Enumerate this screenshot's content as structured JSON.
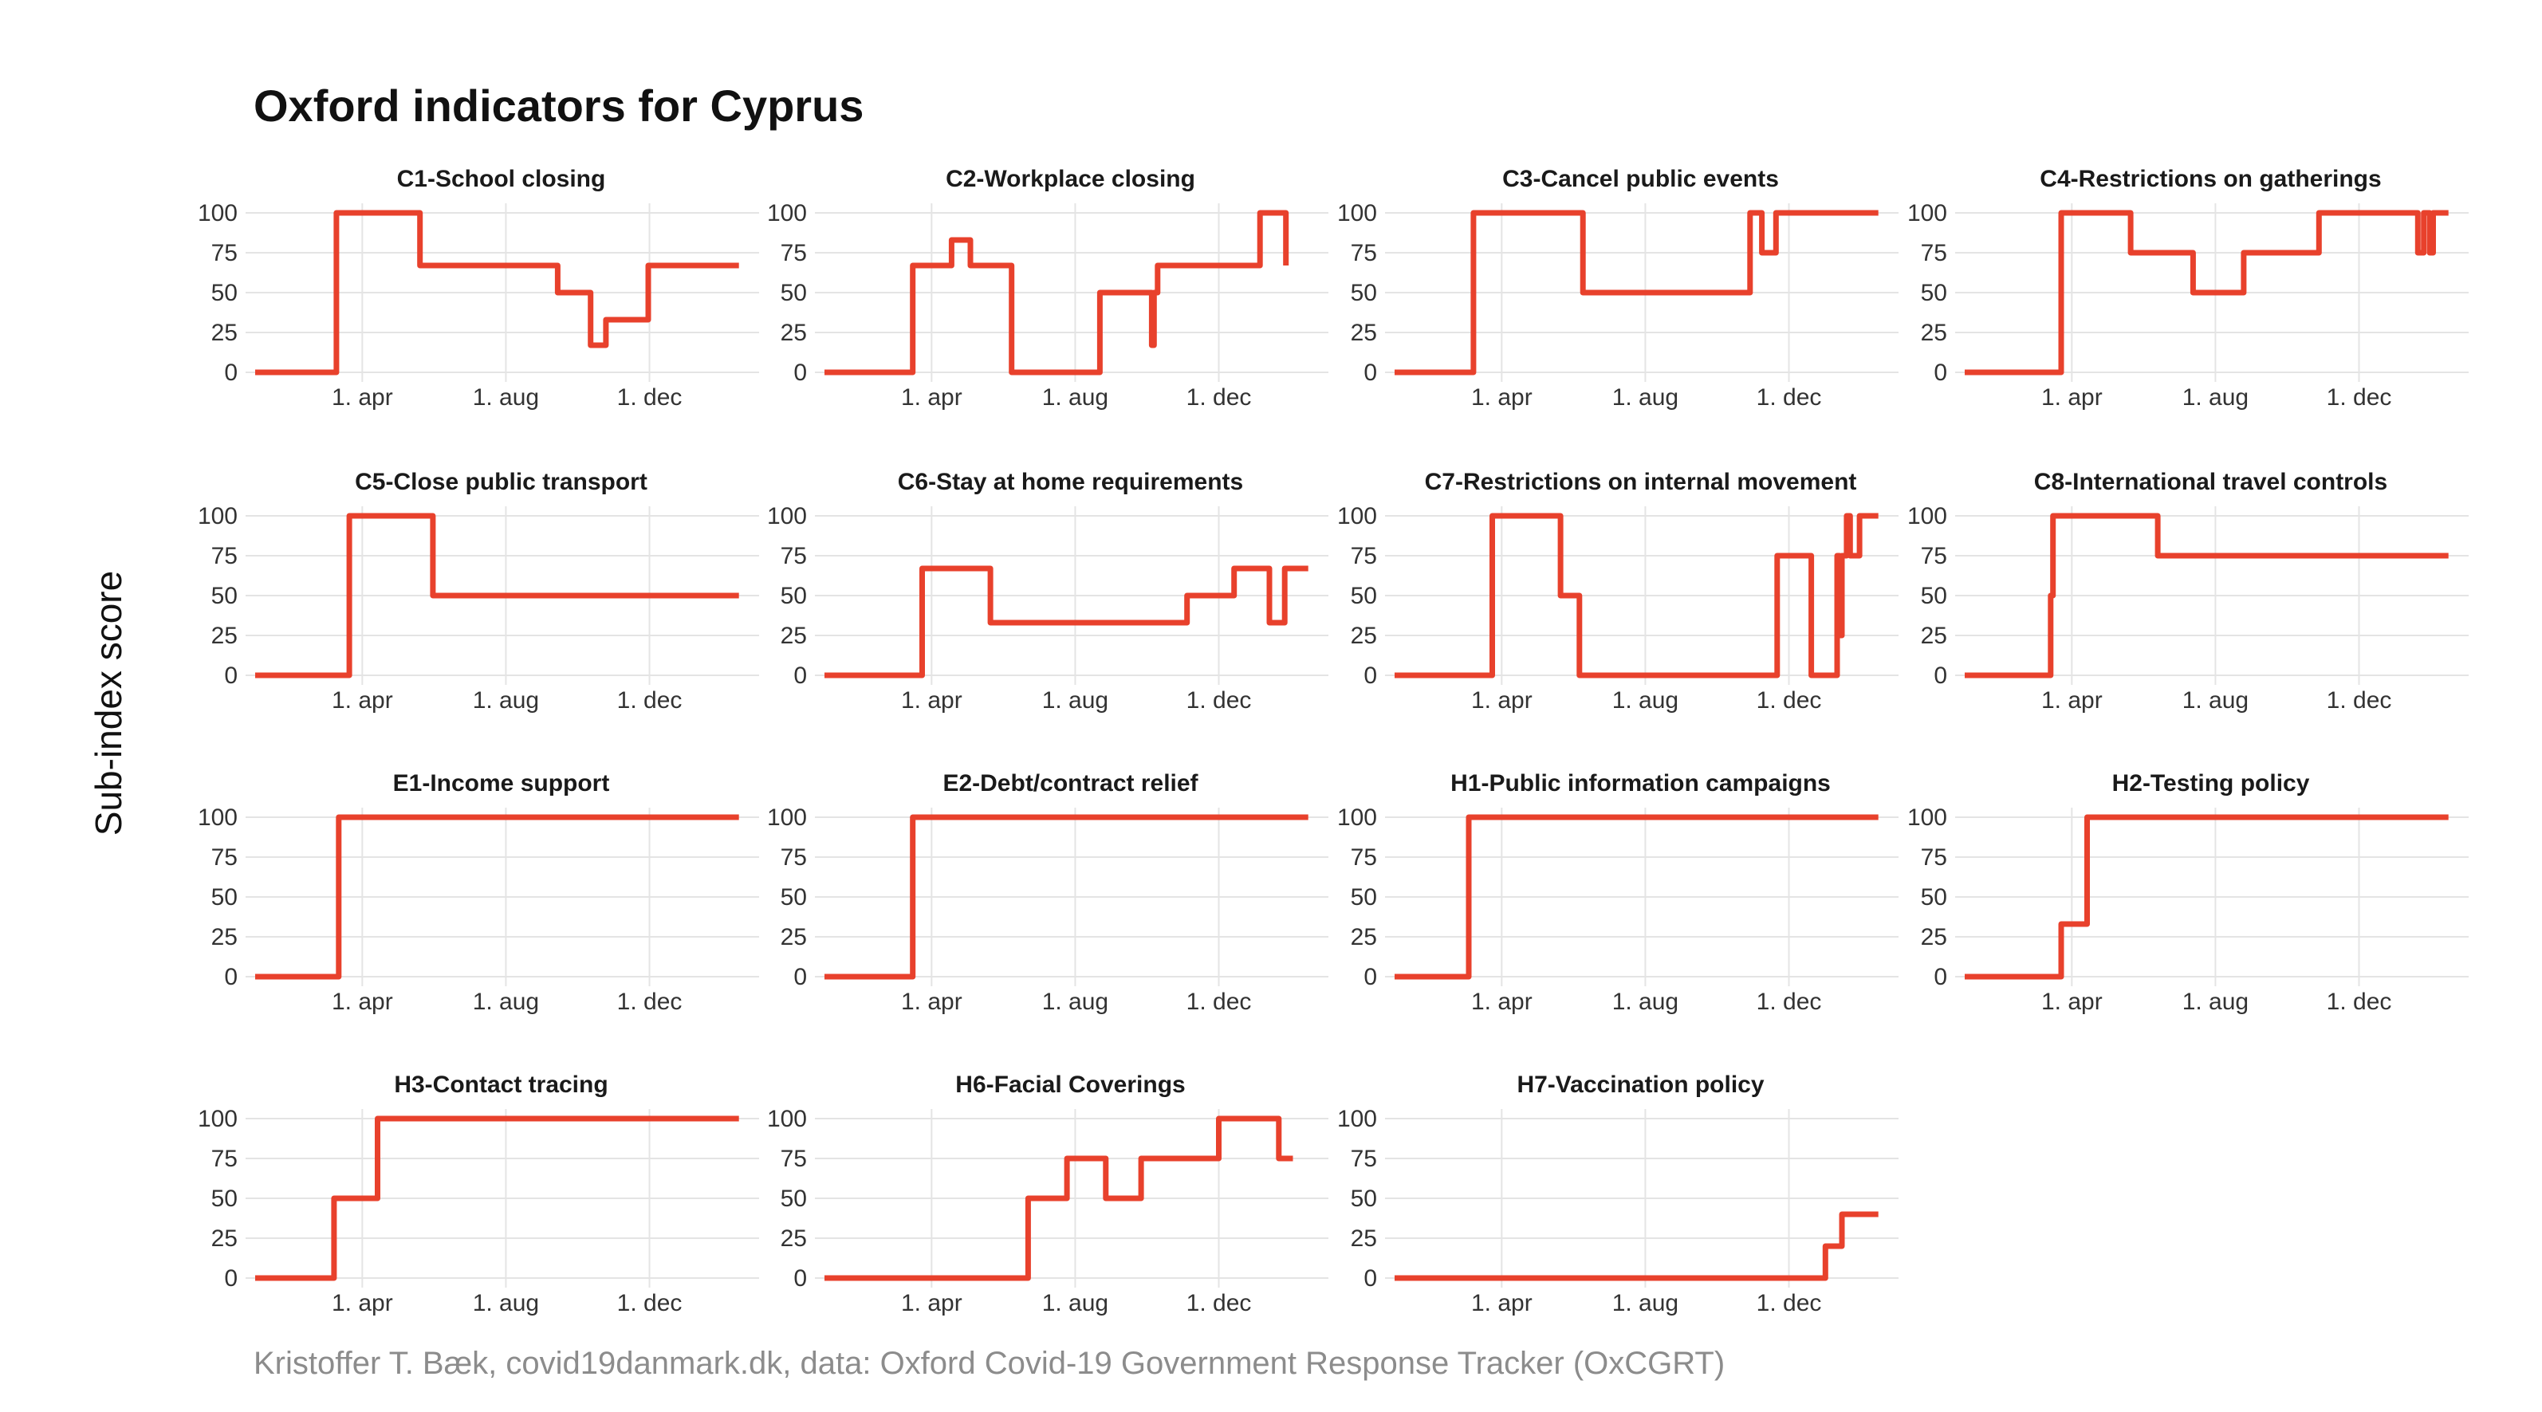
{
  "title": "Oxford indicators for Cyprus",
  "ylabel": "Sub-index score",
  "caption": "Kristoffer T. Bæk, covid19danmark.dk, data: Oxford Covid-19 Government Response Tracker (OxCGRT)",
  "colors": {
    "line": "#e8412c",
    "grid": "#e4e4e4",
    "text": "#333333"
  },
  "chart_data": {
    "type": "line",
    "layout": "small multiples, 4 columns",
    "x_ticks": [
      {
        "label": "1. apr",
        "x": "2020-04-01"
      },
      {
        "label": "1. aug",
        "x": "2020-08-01"
      },
      {
        "label": "1. dec",
        "x": "2020-12-01"
      }
    ],
    "xlim": [
      "2020-01-01",
      "2021-02-24"
    ],
    "ylim": [
      0,
      100
    ],
    "y_ticks": [
      0,
      25,
      50,
      75,
      100
    ],
    "grid": true,
    "panels": [
      {
        "title": "C1-School closing",
        "points": [
          [
            "2020-01-01",
            0
          ],
          [
            "2020-03-10",
            0
          ],
          [
            "2020-03-10",
            100
          ],
          [
            "2020-05-20",
            100
          ],
          [
            "2020-05-20",
            67
          ],
          [
            "2020-09-14",
            67
          ],
          [
            "2020-09-14",
            50
          ],
          [
            "2020-10-12",
            50
          ],
          [
            "2020-10-12",
            17
          ],
          [
            "2020-10-25",
            17
          ],
          [
            "2020-10-25",
            33
          ],
          [
            "2020-11-30",
            33
          ],
          [
            "2020-11-30",
            67
          ],
          [
            "2021-02-15",
            67
          ]
        ]
      },
      {
        "title": "C2-Workplace closing",
        "points": [
          [
            "2020-01-01",
            0
          ],
          [
            "2020-03-16",
            0
          ],
          [
            "2020-03-16",
            67
          ],
          [
            "2020-04-18",
            67
          ],
          [
            "2020-04-18",
            83
          ],
          [
            "2020-05-04",
            83
          ],
          [
            "2020-05-04",
            67
          ],
          [
            "2020-06-08",
            67
          ],
          [
            "2020-06-08",
            0
          ],
          [
            "2020-08-22",
            0
          ],
          [
            "2020-08-22",
            50
          ],
          [
            "2020-10-05",
            50
          ],
          [
            "2020-10-05",
            17
          ],
          [
            "2020-10-07",
            17
          ],
          [
            "2020-10-07",
            50
          ],
          [
            "2020-10-10",
            50
          ],
          [
            "2020-10-10",
            67
          ],
          [
            "2021-01-05",
            67
          ],
          [
            "2021-01-05",
            100
          ],
          [
            "2021-01-27",
            100
          ],
          [
            "2021-01-27",
            67
          ]
        ]
      },
      {
        "title": "C3-Cancel public events",
        "points": [
          [
            "2020-01-01",
            0
          ],
          [
            "2020-03-08",
            0
          ],
          [
            "2020-03-08",
            100
          ],
          [
            "2020-06-09",
            100
          ],
          [
            "2020-06-09",
            50
          ],
          [
            "2020-10-29",
            50
          ],
          [
            "2020-10-29",
            100
          ],
          [
            "2020-11-08",
            100
          ],
          [
            "2020-11-08",
            75
          ],
          [
            "2020-11-20",
            75
          ],
          [
            "2020-11-20",
            100
          ],
          [
            "2021-02-15",
            100
          ]
        ]
      },
      {
        "title": "C4-Restrictions on gatherings",
        "points": [
          [
            "2020-01-01",
            0
          ],
          [
            "2020-03-23",
            0
          ],
          [
            "2020-03-23",
            100
          ],
          [
            "2020-05-21",
            100
          ],
          [
            "2020-05-21",
            75
          ],
          [
            "2020-07-13",
            75
          ],
          [
            "2020-07-13",
            50
          ],
          [
            "2020-08-25",
            50
          ],
          [
            "2020-08-25",
            75
          ],
          [
            "2020-10-28",
            75
          ],
          [
            "2020-10-28",
            100
          ],
          [
            "2021-01-20",
            100
          ],
          [
            "2021-01-20",
            75
          ],
          [
            "2021-01-25",
            75
          ],
          [
            "2021-01-25",
            100
          ],
          [
            "2021-01-30",
            100
          ],
          [
            "2021-01-30",
            75
          ],
          [
            "2021-02-02",
            75
          ],
          [
            "2021-02-02",
            100
          ],
          [
            "2021-02-15",
            100
          ]
        ]
      },
      {
        "title": "C5-Close public transport",
        "points": [
          [
            "2020-01-01",
            0
          ],
          [
            "2020-03-21",
            0
          ],
          [
            "2020-03-21",
            100
          ],
          [
            "2020-05-31",
            100
          ],
          [
            "2020-05-31",
            50
          ],
          [
            "2021-02-15",
            50
          ]
        ]
      },
      {
        "title": "C6-Stay at home requirements",
        "points": [
          [
            "2020-01-01",
            0
          ],
          [
            "2020-03-24",
            0
          ],
          [
            "2020-03-24",
            67
          ],
          [
            "2020-05-21",
            67
          ],
          [
            "2020-05-21",
            33
          ],
          [
            "2020-11-04",
            33
          ],
          [
            "2020-11-04",
            50
          ],
          [
            "2020-12-14",
            50
          ],
          [
            "2020-12-14",
            67
          ],
          [
            "2021-01-13",
            67
          ],
          [
            "2021-01-13",
            33
          ],
          [
            "2021-01-26",
            33
          ],
          [
            "2021-01-26",
            67
          ],
          [
            "2021-02-15",
            67
          ]
        ]
      },
      {
        "title": "C7-Restrictions on internal movement",
        "points": [
          [
            "2020-01-01",
            0
          ],
          [
            "2020-03-24",
            0
          ],
          [
            "2020-03-24",
            100
          ],
          [
            "2020-05-21",
            100
          ],
          [
            "2020-05-21",
            50
          ],
          [
            "2020-06-06",
            50
          ],
          [
            "2020-06-06",
            0
          ],
          [
            "2020-11-21",
            0
          ],
          [
            "2020-11-21",
            75
          ],
          [
            "2020-12-20",
            75
          ],
          [
            "2020-12-20",
            0
          ],
          [
            "2021-01-11",
            0
          ],
          [
            "2021-01-11",
            75
          ],
          [
            "2021-01-13",
            75
          ],
          [
            "2021-01-13",
            25
          ],
          [
            "2021-01-15",
            25
          ],
          [
            "2021-01-15",
            75
          ],
          [
            "2021-01-19",
            75
          ],
          [
            "2021-01-19",
            100
          ],
          [
            "2021-01-22",
            100
          ],
          [
            "2021-01-22",
            75
          ],
          [
            "2021-01-30",
            75
          ],
          [
            "2021-01-30",
            100
          ],
          [
            "2021-02-15",
            100
          ]
        ]
      },
      {
        "title": "C8-International travel controls",
        "points": [
          [
            "2020-01-01",
            0
          ],
          [
            "2020-03-14",
            0
          ],
          [
            "2020-03-14",
            50
          ],
          [
            "2020-03-16",
            50
          ],
          [
            "2020-03-16",
            100
          ],
          [
            "2020-06-13",
            100
          ],
          [
            "2020-06-13",
            75
          ],
          [
            "2021-02-15",
            75
          ]
        ]
      },
      {
        "title": "E1-Income support",
        "points": [
          [
            "2020-01-01",
            0
          ],
          [
            "2020-03-12",
            0
          ],
          [
            "2020-03-12",
            100
          ],
          [
            "2021-02-15",
            100
          ]
        ]
      },
      {
        "title": "E2-Debt/contract relief",
        "points": [
          [
            "2020-01-01",
            0
          ],
          [
            "2020-03-16",
            0
          ],
          [
            "2020-03-16",
            100
          ],
          [
            "2021-02-15",
            100
          ]
        ]
      },
      {
        "title": "H1-Public information campaigns",
        "points": [
          [
            "2020-01-01",
            0
          ],
          [
            "2020-03-04",
            0
          ],
          [
            "2020-03-04",
            100
          ],
          [
            "2021-02-15",
            100
          ]
        ]
      },
      {
        "title": "H2-Testing policy",
        "points": [
          [
            "2020-01-01",
            0
          ],
          [
            "2020-03-23",
            0
          ],
          [
            "2020-03-23",
            33
          ],
          [
            "2020-04-14",
            33
          ],
          [
            "2020-04-14",
            100
          ],
          [
            "2021-02-15",
            100
          ]
        ]
      },
      {
        "title": "H3-Contact tracing",
        "points": [
          [
            "2020-01-01",
            0
          ],
          [
            "2020-03-08",
            0
          ],
          [
            "2020-03-08",
            50
          ],
          [
            "2020-04-14",
            50
          ],
          [
            "2020-04-14",
            100
          ],
          [
            "2021-02-15",
            100
          ]
        ]
      },
      {
        "title": "H6-Facial Coverings",
        "points": [
          [
            "2020-01-01",
            0
          ],
          [
            "2020-06-22",
            0
          ],
          [
            "2020-06-22",
            50
          ],
          [
            "2020-07-25",
            50
          ],
          [
            "2020-07-25",
            75
          ],
          [
            "2020-08-27",
            75
          ],
          [
            "2020-08-27",
            50
          ],
          [
            "2020-09-26",
            50
          ],
          [
            "2020-09-26",
            75
          ],
          [
            "2020-12-01",
            75
          ],
          [
            "2020-12-01",
            100
          ],
          [
            "2021-01-21",
            100
          ],
          [
            "2021-01-21",
            75
          ],
          [
            "2021-02-02",
            75
          ]
        ]
      },
      {
        "title": "H7-Vaccination policy",
        "points": [
          [
            "2020-01-01",
            0
          ],
          [
            "2021-01-01",
            0
          ],
          [
            "2021-01-01",
            20
          ],
          [
            "2021-01-15",
            20
          ],
          [
            "2021-01-15",
            40
          ],
          [
            "2021-02-15",
            40
          ]
        ]
      }
    ]
  }
}
